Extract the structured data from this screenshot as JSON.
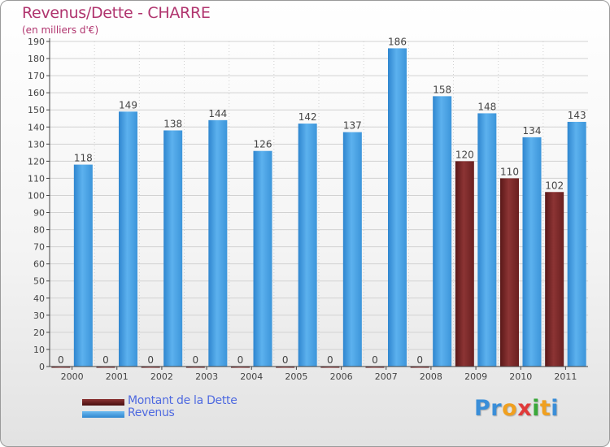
{
  "chart_data": {
    "type": "bar",
    "title": "Revenus/Dette - CHARRE",
    "subtitle": "(en milliers d'€)",
    "categories": [
      "2000",
      "2001",
      "2002",
      "2003",
      "2004",
      "2005",
      "2006",
      "2007",
      "2008",
      "2009",
      "2010",
      "2011"
    ],
    "series": [
      {
        "name": "Montant de la Dette",
        "values": [
          0,
          0,
          0,
          0,
          0,
          0,
          0,
          0,
          0,
          120,
          110,
          102
        ],
        "color": "#7a2a2a"
      },
      {
        "name": "Revenus",
        "values": [
          118,
          149,
          138,
          144,
          126,
          142,
          137,
          186,
          158,
          148,
          134,
          143
        ],
        "color": "#4aa2e2"
      }
    ],
    "ylim": [
      0,
      190
    ],
    "yticks": [
      0,
      10,
      20,
      30,
      40,
      50,
      60,
      70,
      80,
      90,
      100,
      110,
      120,
      130,
      140,
      150,
      160,
      170,
      180,
      190
    ],
    "grid": true,
    "legend_position": "bottom-left"
  },
  "logo": {
    "letters": [
      {
        "char": "P",
        "color": "#3a8ed8"
      },
      {
        "char": "r",
        "color": "#3a8ed8"
      },
      {
        "char": "o",
        "color": "#f0a020"
      },
      {
        "char": "x",
        "color": "#e03a3a"
      },
      {
        "char": "i",
        "color": "#3aa83a"
      },
      {
        "char": "t",
        "color": "#f0a020"
      },
      {
        "char": "i",
        "color": "#3a8ed8"
      }
    ]
  }
}
